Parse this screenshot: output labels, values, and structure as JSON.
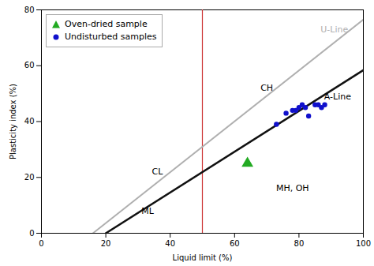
{
  "chart_data": {
    "type": "scatter",
    "xlabel": "Liquid limit (%)",
    "ylabel": "Plasticity index (%)",
    "xlim": [
      0,
      100
    ],
    "ylim": [
      0,
      80
    ],
    "xticks": [
      0,
      20,
      40,
      60,
      80,
      100
    ],
    "yticks": [
      0,
      20,
      40,
      60,
      80
    ],
    "grid": false,
    "legend": "upper left",
    "series": [
      {
        "name": "Oven-dried sample",
        "type": "scatter",
        "marker": "triangle",
        "color": "#22aa22",
        "x": [
          64
        ],
        "y": [
          25
        ]
      },
      {
        "name": "Undisturbed samples",
        "type": "scatter",
        "marker": "circle",
        "color": "#1010cc",
        "x": [
          73,
          76,
          78,
          79,
          80,
          81,
          82,
          83,
          85,
          86,
          87,
          88
        ],
        "y": [
          39,
          43,
          44,
          44,
          45,
          46,
          45,
          42,
          46,
          46,
          45,
          46
        ]
      }
    ],
    "lines": [
      {
        "x": [
          16,
          100
        ],
        "y": [
          0,
          76.5
        ],
        "color": "#b0b0b0"
      },
      {
        "x": [
          20,
          100
        ],
        "y": [
          0,
          58.4
        ],
        "color": "#111111"
      }
    ],
    "vertical_lines": [
      {
        "x": 50,
        "color": "#cc3333"
      }
    ],
    "annotations": [
      {
        "x": 70,
        "y": 52,
        "text": "CH"
      },
      {
        "x": 36,
        "y": 22,
        "text": "CL"
      },
      {
        "x": 33,
        "y": 8,
        "text": "ML"
      },
      {
        "x": 78,
        "y": 16,
        "text": "MH, OH"
      },
      {
        "x": 92,
        "y": 49,
        "text": "A-Line"
      },
      {
        "x": 91,
        "y": 73,
        "text": "U-Line",
        "color": "#b0b0b0"
      }
    ]
  }
}
